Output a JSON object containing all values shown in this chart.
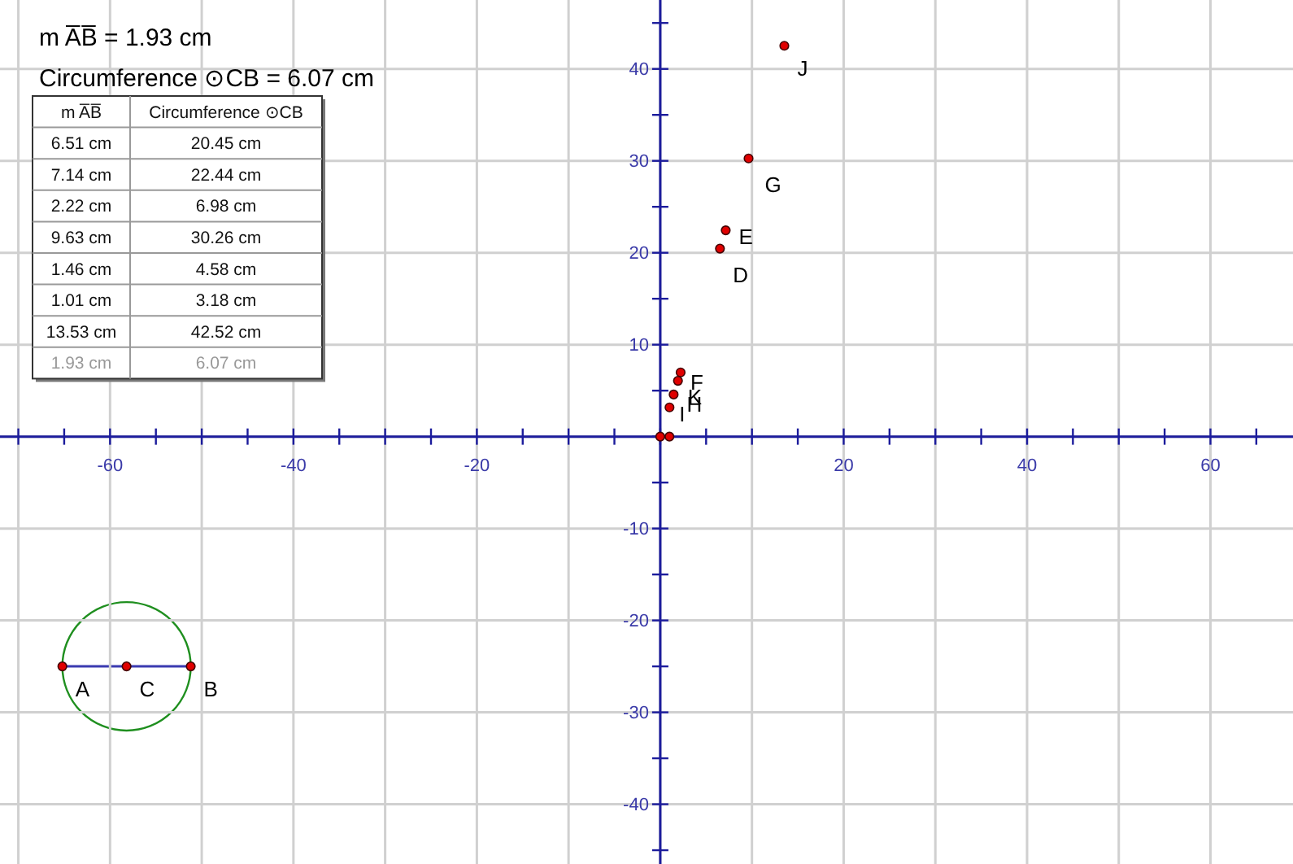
{
  "chart_data": {
    "type": "scatter",
    "marker": "circle",
    "grid": true,
    "xlim": [
      -72,
      69
    ],
    "ylim": [
      -46.5,
      47.5
    ],
    "xticks": [
      {
        "value": -70,
        "label": null
      },
      {
        "value": -65,
        "label": null
      },
      {
        "value": -60,
        "label": "-60"
      },
      {
        "value": -55,
        "label": null
      },
      {
        "value": -50,
        "label": null
      },
      {
        "value": -45,
        "label": null
      },
      {
        "value": -40,
        "label": "-40"
      },
      {
        "value": -35,
        "label": null
      },
      {
        "value": -30,
        "label": null
      },
      {
        "value": -25,
        "label": null
      },
      {
        "value": -20,
        "label": "-20"
      },
      {
        "value": -15,
        "label": null
      },
      {
        "value": -10,
        "label": null
      },
      {
        "value": -5,
        "label": null
      },
      {
        "value": 0,
        "label": null
      },
      {
        "value": 5,
        "label": null
      },
      {
        "value": 10,
        "label": null
      },
      {
        "value": 15,
        "label": null
      },
      {
        "value": 20,
        "label": "20"
      },
      {
        "value": 25,
        "label": null
      },
      {
        "value": 30,
        "label": null
      },
      {
        "value": 35,
        "label": null
      },
      {
        "value": 40,
        "label": "40"
      },
      {
        "value": 45,
        "label": null
      },
      {
        "value": 50,
        "label": null
      },
      {
        "value": 55,
        "label": null
      },
      {
        "value": 60,
        "label": "60"
      },
      {
        "value": 65,
        "label": null
      }
    ],
    "yticks": [
      {
        "value": -45,
        "label": null
      },
      -40,
      {
        "value": -35,
        "label": null
      },
      -30,
      {
        "value": -25,
        "label": null
      },
      -20,
      {
        "value": -15,
        "label": null
      },
      -10,
      {
        "value": -5,
        "label": null
      },
      {
        "value": 0,
        "label": null
      },
      {
        "value": 5,
        "label": null
      },
      10,
      {
        "value": 15,
        "label": null
      },
      20,
      {
        "value": 25,
        "label": null
      },
      30,
      {
        "value": 35,
        "label": null
      },
      40,
      {
        "value": 45,
        "label": null
      }
    ],
    "series": [
      {
        "color": "#e00000",
        "x": [
          6.51,
          7.14,
          2.22,
          9.63,
          1.46,
          1.01,
          13.53,
          1.93
        ],
        "values": [
          20.45,
          22.44,
          6.98,
          30.26,
          4.58,
          3.18,
          42.52,
          6.07
        ]
      },
      {
        "color": "#e00000",
        "x": [
          0,
          1
        ],
        "values": [
          0,
          0
        ]
      },
      {
        "color": "#e00000",
        "x": [
          -65.2,
          -58.2,
          -51.2
        ],
        "values": [
          -25,
          -25,
          -25
        ]
      }
    ],
    "annotations": [
      "m A̅B̅ = 1.93 cm",
      "Circumference ⊙CB = 6.07 cm",
      "m A̅B̅",
      "Circumference ⊙CB",
      "6.51 cm",
      "20.45 cm",
      "7.14 cm",
      "22.44 cm",
      "2.22 cm",
      "6.98 cm",
      "9.63 cm",
      "30.26 cm",
      "1.46 cm",
      "4.58 cm",
      "1.01 cm",
      "3.18 cm",
      "13.53 cm",
      "42.52 cm",
      "1.93 cm",
      "6.07 cm",
      {
        "text": "D",
        "x": 6.51,
        "y": 20.45
      },
      {
        "text": "E",
        "x": 7.14,
        "y": 22.44
      },
      {
        "text": "F",
        "x": 2.22,
        "y": 6.98
      },
      {
        "text": "G",
        "x": 9.63,
        "y": 30.26
      },
      {
        "text": "H",
        "x": 1.46,
        "y": 4.58
      },
      {
        "text": "I",
        "x": 1.01,
        "y": 3.18
      },
      {
        "text": "J",
        "x": 13.53,
        "y": 42.52
      },
      {
        "text": "K",
        "x": 1.93,
        "y": 6.07
      },
      {
        "text": "A",
        "x": -65.2,
        "y": -25
      },
      {
        "text": "C",
        "x": -58.2,
        "y": -25
      },
      {
        "text": "B",
        "x": -51.2,
        "y": -25
      }
    ]
  }
}
